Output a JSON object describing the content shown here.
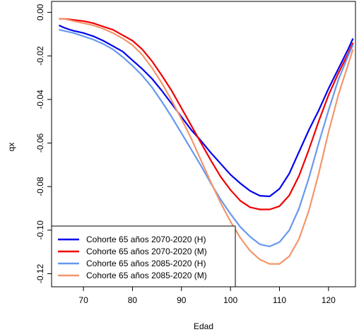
{
  "chart_data": {
    "type": "line",
    "title": "",
    "xlabel": "Edad",
    "ylabel": "qx",
    "xlim": [
      63.5,
      125.5
    ],
    "ylim": [
      -0.126,
      0.005
    ],
    "grid": false,
    "legend_position": "bottom-left",
    "xticks": [
      70,
      80,
      90,
      100,
      110,
      120
    ],
    "yticks": [
      0.0,
      -0.02,
      -0.04,
      -0.06,
      -0.08,
      -0.1,
      -0.12
    ],
    "ytick_labels": [
      "0.00",
      "-0.02",
      "-0.04",
      "-0.06",
      "-0.08",
      "-0.10",
      "-0.12"
    ],
    "series": [
      {
        "name": "Cohorte 65 años 2070-2020 (H)",
        "color": "#0000ee",
        "points": [
          [
            65,
            -0.006
          ],
          [
            66,
            -0.007
          ],
          [
            67,
            -0.0078
          ],
          [
            68,
            -0.0085
          ],
          [
            70,
            -0.0095
          ],
          [
            72,
            -0.011
          ],
          [
            74,
            -0.013
          ],
          [
            76,
            -0.0155
          ],
          [
            78,
            -0.018
          ],
          [
            80,
            -0.022
          ],
          [
            82,
            -0.026
          ],
          [
            84,
            -0.0305
          ],
          [
            86,
            -0.036
          ],
          [
            88,
            -0.042
          ],
          [
            90,
            -0.048
          ],
          [
            92,
            -0.054
          ],
          [
            94,
            -0.059
          ],
          [
            96,
            -0.0645
          ],
          [
            98,
            -0.0695
          ],
          [
            100,
            -0.0745
          ],
          [
            102,
            -0.0785
          ],
          [
            104,
            -0.082
          ],
          [
            106,
            -0.0842
          ],
          [
            108,
            -0.0845
          ],
          [
            110,
            -0.081
          ],
          [
            112,
            -0.074
          ],
          [
            114,
            -0.064
          ],
          [
            116,
            -0.054
          ],
          [
            118,
            -0.045
          ],
          [
            120,
            -0.035
          ],
          [
            122,
            -0.026
          ],
          [
            124,
            -0.017
          ],
          [
            125,
            -0.012
          ]
        ]
      },
      {
        "name": "Cohorte 65 años 2070-2020 (M)",
        "color": "#ee0000",
        "points": [
          [
            65,
            -0.003
          ],
          [
            66,
            -0.003
          ],
          [
            67,
            -0.0032
          ],
          [
            68,
            -0.0035
          ],
          [
            70,
            -0.004
          ],
          [
            72,
            -0.005
          ],
          [
            74,
            -0.0065
          ],
          [
            76,
            -0.008
          ],
          [
            78,
            -0.0105
          ],
          [
            80,
            -0.013
          ],
          [
            82,
            -0.017
          ],
          [
            84,
            -0.0225
          ],
          [
            86,
            -0.029
          ],
          [
            88,
            -0.036
          ],
          [
            90,
            -0.044
          ],
          [
            92,
            -0.052
          ],
          [
            94,
            -0.06
          ],
          [
            96,
            -0.068
          ],
          [
            98,
            -0.0755
          ],
          [
            100,
            -0.0815
          ],
          [
            102,
            -0.0865
          ],
          [
            104,
            -0.0895
          ],
          [
            106,
            -0.0905
          ],
          [
            108,
            -0.0905
          ],
          [
            110,
            -0.089
          ],
          [
            112,
            -0.084
          ],
          [
            114,
            -0.075
          ],
          [
            116,
            -0.063
          ],
          [
            118,
            -0.05
          ],
          [
            120,
            -0.038
          ],
          [
            122,
            -0.028
          ],
          [
            124,
            -0.019
          ],
          [
            125,
            -0.014
          ]
        ]
      },
      {
        "name": "Cohorte 65 años 2085-2020 (H)",
        "color": "#6699ee",
        "points": [
          [
            65,
            -0.008
          ],
          [
            66,
            -0.0085
          ],
          [
            67,
            -0.009
          ],
          [
            68,
            -0.0095
          ],
          [
            70,
            -0.011
          ],
          [
            72,
            -0.0125
          ],
          [
            74,
            -0.0145
          ],
          [
            76,
            -0.017
          ],
          [
            78,
            -0.0205
          ],
          [
            80,
            -0.0245
          ],
          [
            82,
            -0.029
          ],
          [
            84,
            -0.0345
          ],
          [
            86,
            -0.041
          ],
          [
            88,
            -0.048
          ],
          [
            90,
            -0.0555
          ],
          [
            92,
            -0.063
          ],
          [
            94,
            -0.0705
          ],
          [
            96,
            -0.0785
          ],
          [
            98,
            -0.086
          ],
          [
            100,
            -0.0925
          ],
          [
            102,
            -0.0985
          ],
          [
            104,
            -0.103
          ],
          [
            106,
            -0.1065
          ],
          [
            108,
            -0.1075
          ],
          [
            110,
            -0.1055
          ],
          [
            112,
            -0.1
          ],
          [
            114,
            -0.09
          ],
          [
            116,
            -0.076
          ],
          [
            118,
            -0.06
          ],
          [
            120,
            -0.045
          ],
          [
            122,
            -0.031
          ],
          [
            124,
            -0.02
          ],
          [
            125,
            -0.015
          ]
        ]
      },
      {
        "name": "Cohorte 65 años 2085-2020 (M)",
        "color": "#f4956c",
        "points": [
          [
            65,
            -0.003
          ],
          [
            66,
            -0.003
          ],
          [
            67,
            -0.0035
          ],
          [
            68,
            -0.004
          ],
          [
            70,
            -0.005
          ],
          [
            72,
            -0.006
          ],
          [
            74,
            -0.0075
          ],
          [
            76,
            -0.0095
          ],
          [
            78,
            -0.012
          ],
          [
            80,
            -0.015
          ],
          [
            82,
            -0.0195
          ],
          [
            84,
            -0.0255
          ],
          [
            86,
            -0.0325
          ],
          [
            88,
            -0.0405
          ],
          [
            90,
            -0.049
          ],
          [
            92,
            -0.058
          ],
          [
            94,
            -0.068
          ],
          [
            96,
            -0.078
          ],
          [
            98,
            -0.0875
          ],
          [
            100,
            -0.096
          ],
          [
            102,
            -0.1035
          ],
          [
            104,
            -0.1095
          ],
          [
            106,
            -0.1135
          ],
          [
            108,
            -0.1155
          ],
          [
            110,
            -0.1155
          ],
          [
            112,
            -0.112
          ],
          [
            114,
            -0.104
          ],
          [
            116,
            -0.091
          ],
          [
            118,
            -0.074
          ],
          [
            120,
            -0.055
          ],
          [
            122,
            -0.038
          ],
          [
            124,
            -0.024
          ],
          [
            125,
            -0.017
          ]
        ]
      }
    ]
  }
}
